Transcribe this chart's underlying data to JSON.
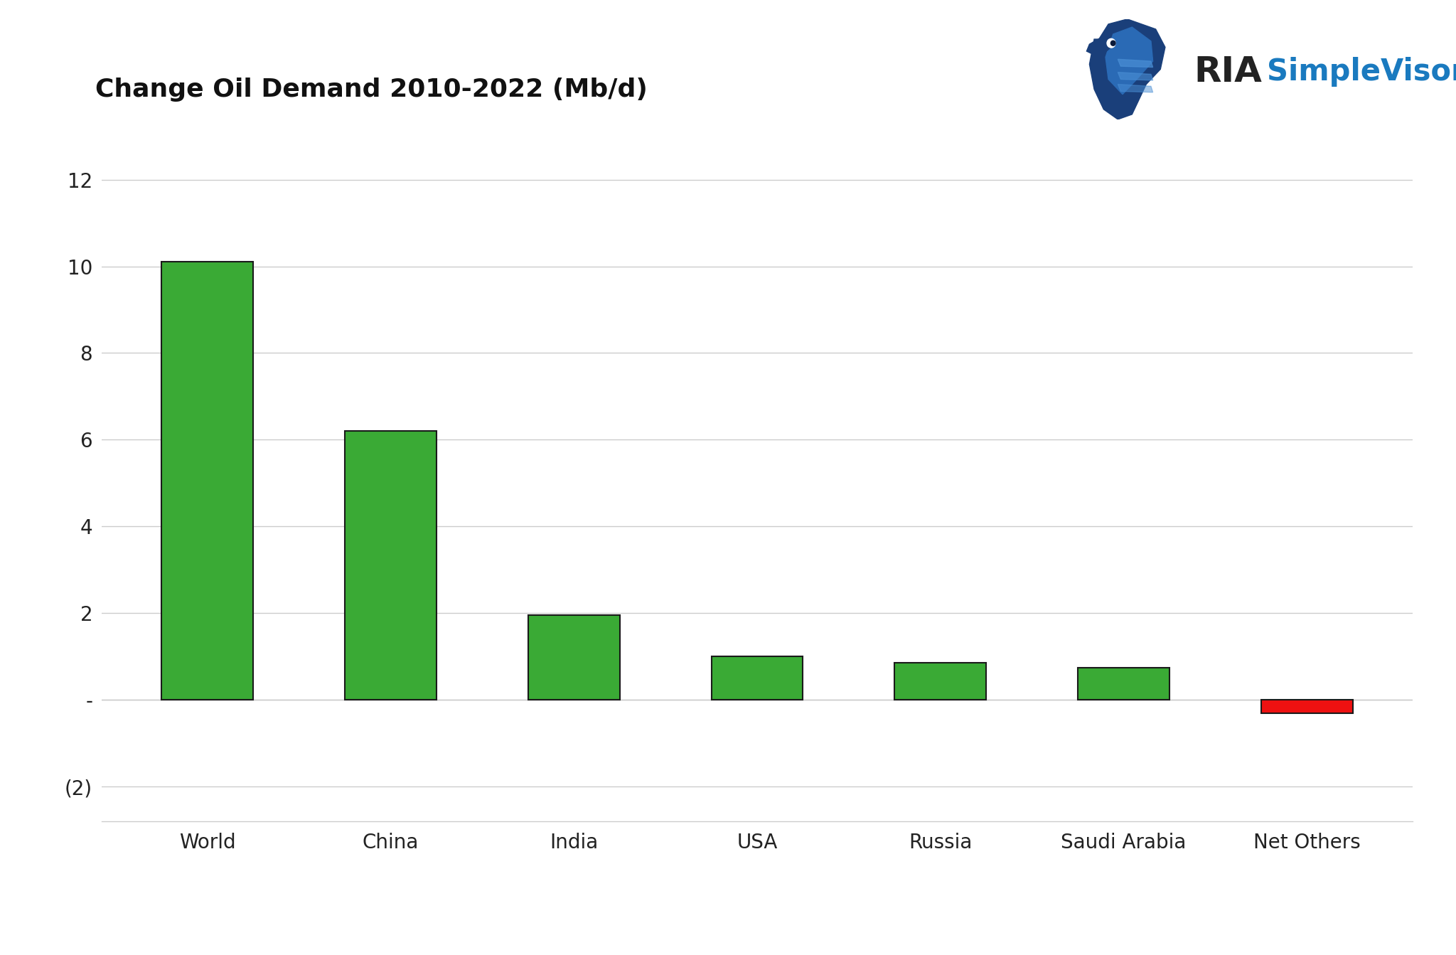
{
  "title": "Change Oil Demand 2010-2022 (Mb/d)",
  "categories": [
    "World",
    "China",
    "India",
    "USA",
    "Russia",
    "Saudi Arabia",
    "Net Others"
  ],
  "values": [
    10.1,
    6.2,
    1.95,
    1.0,
    0.85,
    0.75,
    -0.3
  ],
  "bar_colors": [
    "#3aaa35",
    "#3aaa35",
    "#3aaa35",
    "#3aaa35",
    "#3aaa35",
    "#3aaa35",
    "#ee1111"
  ],
  "bar_edge_color": "#1a1a1a",
  "bar_edge_width": 1.5,
  "yticks": [
    -2,
    0,
    2,
    4,
    6,
    8,
    10,
    12
  ],
  "ytick_labels": [
    "(2)",
    "-",
    "2",
    "4",
    "6",
    "8",
    "10",
    "12"
  ],
  "ylim": [
    -2.8,
    13.5
  ],
  "background_color": "#ffffff",
  "grid_color": "#cccccc",
  "title_fontsize": 26,
  "tick_fontsize": 20,
  "xtick_fontsize": 20,
  "bar_width": 0.5,
  "logo_ria_color": "#222222",
  "logo_sv_color": "#1a7abf",
  "logo_eagle_color1": "#1a4f8a",
  "logo_eagle_color2": "#2a6fc4"
}
